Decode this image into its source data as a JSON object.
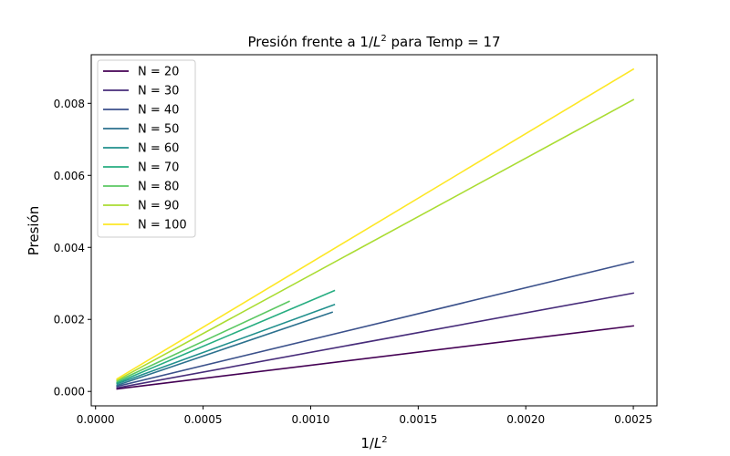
{
  "chart_data": {
    "type": "line",
    "title": {
      "pre": "Presión frente a 1/",
      "var": "L",
      "sup": "2",
      "post": " para Temp = 17"
    },
    "xlabel": {
      "pre": "1/",
      "var": "L",
      "sup": "2"
    },
    "ylabel": "Presión",
    "xlim": [
      -2e-05,
      0.00261
    ],
    "ylim": [
      -0.0004,
      0.00935
    ],
    "xticks": [
      0.0,
      0.0005,
      0.001,
      0.0015,
      0.002,
      0.0025
    ],
    "xtick_labels": [
      "0.0000",
      "0.0005",
      "0.0010",
      "0.0015",
      "0.0020",
      "0.0025"
    ],
    "yticks": [
      0.0,
      0.002,
      0.004,
      0.006,
      0.008
    ],
    "ytick_labels": [
      "0.000",
      "0.002",
      "0.004",
      "0.006",
      "0.008"
    ],
    "grid": false,
    "legend_position": "top-left",
    "series": [
      {
        "name": "N = 20",
        "color": "#440154",
        "x": [
          0.0001,
          0.0025
        ],
        "y": [
          7e-05,
          0.00182
        ]
      },
      {
        "name": "N = 30",
        "color": "#472c7a",
        "x": [
          0.0001,
          0.0025
        ],
        "y": [
          0.0001,
          0.00273
        ]
      },
      {
        "name": "N = 40",
        "color": "#3b518b",
        "x": [
          0.0001,
          0.0025
        ],
        "y": [
          0.00014,
          0.0036
        ]
      },
      {
        "name": "N = 50",
        "color": "#2c718e",
        "x": [
          0.0001,
          0.0011
        ],
        "y": [
          0.00017,
          0.0022
        ]
      },
      {
        "name": "N = 60",
        "color": "#21908d",
        "x": [
          0.0001,
          0.00111
        ],
        "y": [
          0.00021,
          0.00241
        ]
      },
      {
        "name": "N = 70",
        "color": "#27ad81",
        "x": [
          0.0001,
          0.00111
        ],
        "y": [
          0.00024,
          0.0028
        ]
      },
      {
        "name": "N = 80",
        "color": "#5cc863",
        "x": [
          0.0001,
          0.0009
        ],
        "y": [
          0.00028,
          0.0025
        ]
      },
      {
        "name": "N = 90",
        "color": "#aadc32",
        "x": [
          0.0001,
          0.0025
        ],
        "y": [
          0.00031,
          0.0081
        ]
      },
      {
        "name": "N = 100",
        "color": "#fde725",
        "x": [
          0.0001,
          0.0025
        ],
        "y": [
          0.00035,
          0.00895
        ]
      }
    ]
  }
}
